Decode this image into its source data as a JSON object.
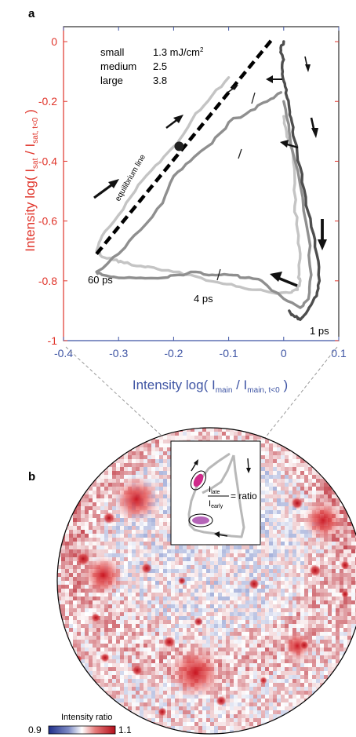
{
  "panel_a_label": "a",
  "panel_b_label": "b",
  "colors": {
    "y_axis": "#e0352b",
    "x_axis": "#3f55a4",
    "trace_small": "#c4c4c4",
    "trace_medium": "#8f8f8f",
    "trace_large": "#4e4e4e",
    "equilibrium_line": "#000000",
    "map_blue": "#3a53a4",
    "map_red": "#d6202a"
  },
  "chart_data": [
    {
      "type": "line",
      "title": "",
      "xlabel": {
        "main": "Intensity  log( I",
        "sub": "main",
        "mid": " / I",
        "sub2": "main, t<0",
        "end": " )"
      },
      "ylabel": {
        "main": "Intensity  log( I",
        "sub": "sat",
        "mid": " / I",
        "sub2": "sat, t<0",
        "end": " )"
      },
      "xlim": [
        -0.4,
        0.1
      ],
      "ylim": [
        -1.0,
        0.05
      ],
      "xticks": [
        -0.4,
        -0.3,
        -0.2,
        -0.1,
        0,
        0.1
      ],
      "xtick_labels": [
        "-0.4",
        "-0.3",
        "-0.2",
        "-0.1",
        "0",
        "0.1"
      ],
      "yticks": [
        0,
        -0.2,
        -0.4,
        -0.6,
        -0.8,
        -1.0
      ],
      "ytick_labels": [
        "0",
        "-0.2",
        "-0.4",
        "-0.6",
        "-0.8",
        "-1"
      ],
      "legend": {
        "names": [
          "small",
          "medium",
          "large"
        ],
        "values": [
          "1.3 mJ/cm",
          "2.5",
          "3.8"
        ],
        "unit_sup": "2"
      },
      "annotations": {
        "equilibrium_label": "equilibrium line",
        "label_60ps": "60 ps",
        "label_4ps": "4 ps",
        "label_1ps": "1 ps"
      },
      "equilibrium_line": {
        "x": [
          -0.34,
          -0.02
        ],
        "y": [
          -0.71,
          0.01
        ]
      },
      "marker_point": {
        "x": -0.19,
        "y": -0.35
      },
      "series": [
        {
          "name": "small",
          "color": "#c4c4c4",
          "x": [
            0.0,
            0.005,
            0.015,
            0.02,
            0.02,
            0.025,
            0.03,
            0.028,
            0.03,
            0.025,
            0.01,
            -0.02,
            -0.05,
            -0.08,
            -0.11,
            -0.15,
            -0.19,
            -0.23,
            -0.26,
            -0.29,
            -0.31,
            -0.33,
            -0.34,
            -0.33,
            -0.3,
            -0.27,
            -0.24,
            -0.21,
            -0.19,
            -0.16,
            -0.13,
            -0.1
          ],
          "y": [
            -0.25,
            -0.3,
            -0.36,
            -0.45,
            -0.55,
            -0.63,
            -0.71,
            -0.78,
            -0.8,
            -0.83,
            -0.84,
            -0.84,
            -0.83,
            -0.82,
            -0.81,
            -0.79,
            -0.77,
            -0.76,
            -0.75,
            -0.74,
            -0.73,
            -0.72,
            -0.7,
            -0.65,
            -0.58,
            -0.5,
            -0.43,
            -0.37,
            -0.33,
            -0.24,
            -0.18,
            -0.12
          ]
        },
        {
          "name": "medium",
          "color": "#8f8f8f",
          "x": [
            0.0,
            0.01,
            0.03,
            0.045,
            0.05,
            0.045,
            0.03,
            0.0,
            -0.04,
            -0.07,
            -0.1,
            -0.13,
            -0.16,
            -0.19,
            -0.22,
            -0.26,
            -0.3,
            -0.33,
            -0.34,
            -0.3,
            -0.26,
            -0.22,
            -0.2,
            -0.17,
            -0.13,
            -0.1,
            -0.06,
            -0.03,
            -0.005
          ],
          "y": [
            -0.2,
            -0.3,
            -0.48,
            -0.65,
            -0.78,
            -0.86,
            -0.89,
            -0.86,
            -0.8,
            -0.79,
            -0.78,
            -0.78,
            -0.77,
            -0.78,
            -0.79,
            -0.79,
            -0.79,
            -0.78,
            -0.77,
            -0.71,
            -0.63,
            -0.54,
            -0.45,
            -0.4,
            -0.34,
            -0.27,
            -0.23,
            -0.2,
            -0.17
          ]
        },
        {
          "name": "large",
          "color": "#4e4e4e",
          "x": [
            0.0,
            -0.005,
            0.0,
            -0.002,
            0.002,
            0.005,
            0.01,
            0.015,
            0.02,
            0.03,
            0.04,
            0.05,
            0.06,
            0.065,
            0.06,
            0.05,
            0.04,
            0.03,
            0.02,
            0.01
          ],
          "y": [
            0.0,
            -0.03,
            -0.06,
            -0.1,
            -0.14,
            -0.18,
            -0.22,
            -0.27,
            -0.33,
            -0.42,
            -0.52,
            -0.62,
            -0.71,
            -0.8,
            -0.85,
            -0.88,
            -0.91,
            -0.93,
            -0.92,
            -0.9
          ]
        }
      ]
    },
    {
      "type": "heatmap",
      "title": "",
      "colorbar_label": "Intensity ratio",
      "colorbar_min_label": "0.9",
      "colorbar_max_label": "1.1",
      "range": [
        0.9,
        1.1
      ],
      "inset": {
        "ratio_text": "= ratio",
        "numerator": "I",
        "numerator_sub": "late",
        "denominator": "I",
        "denominator_sub": "early"
      }
    }
  ]
}
